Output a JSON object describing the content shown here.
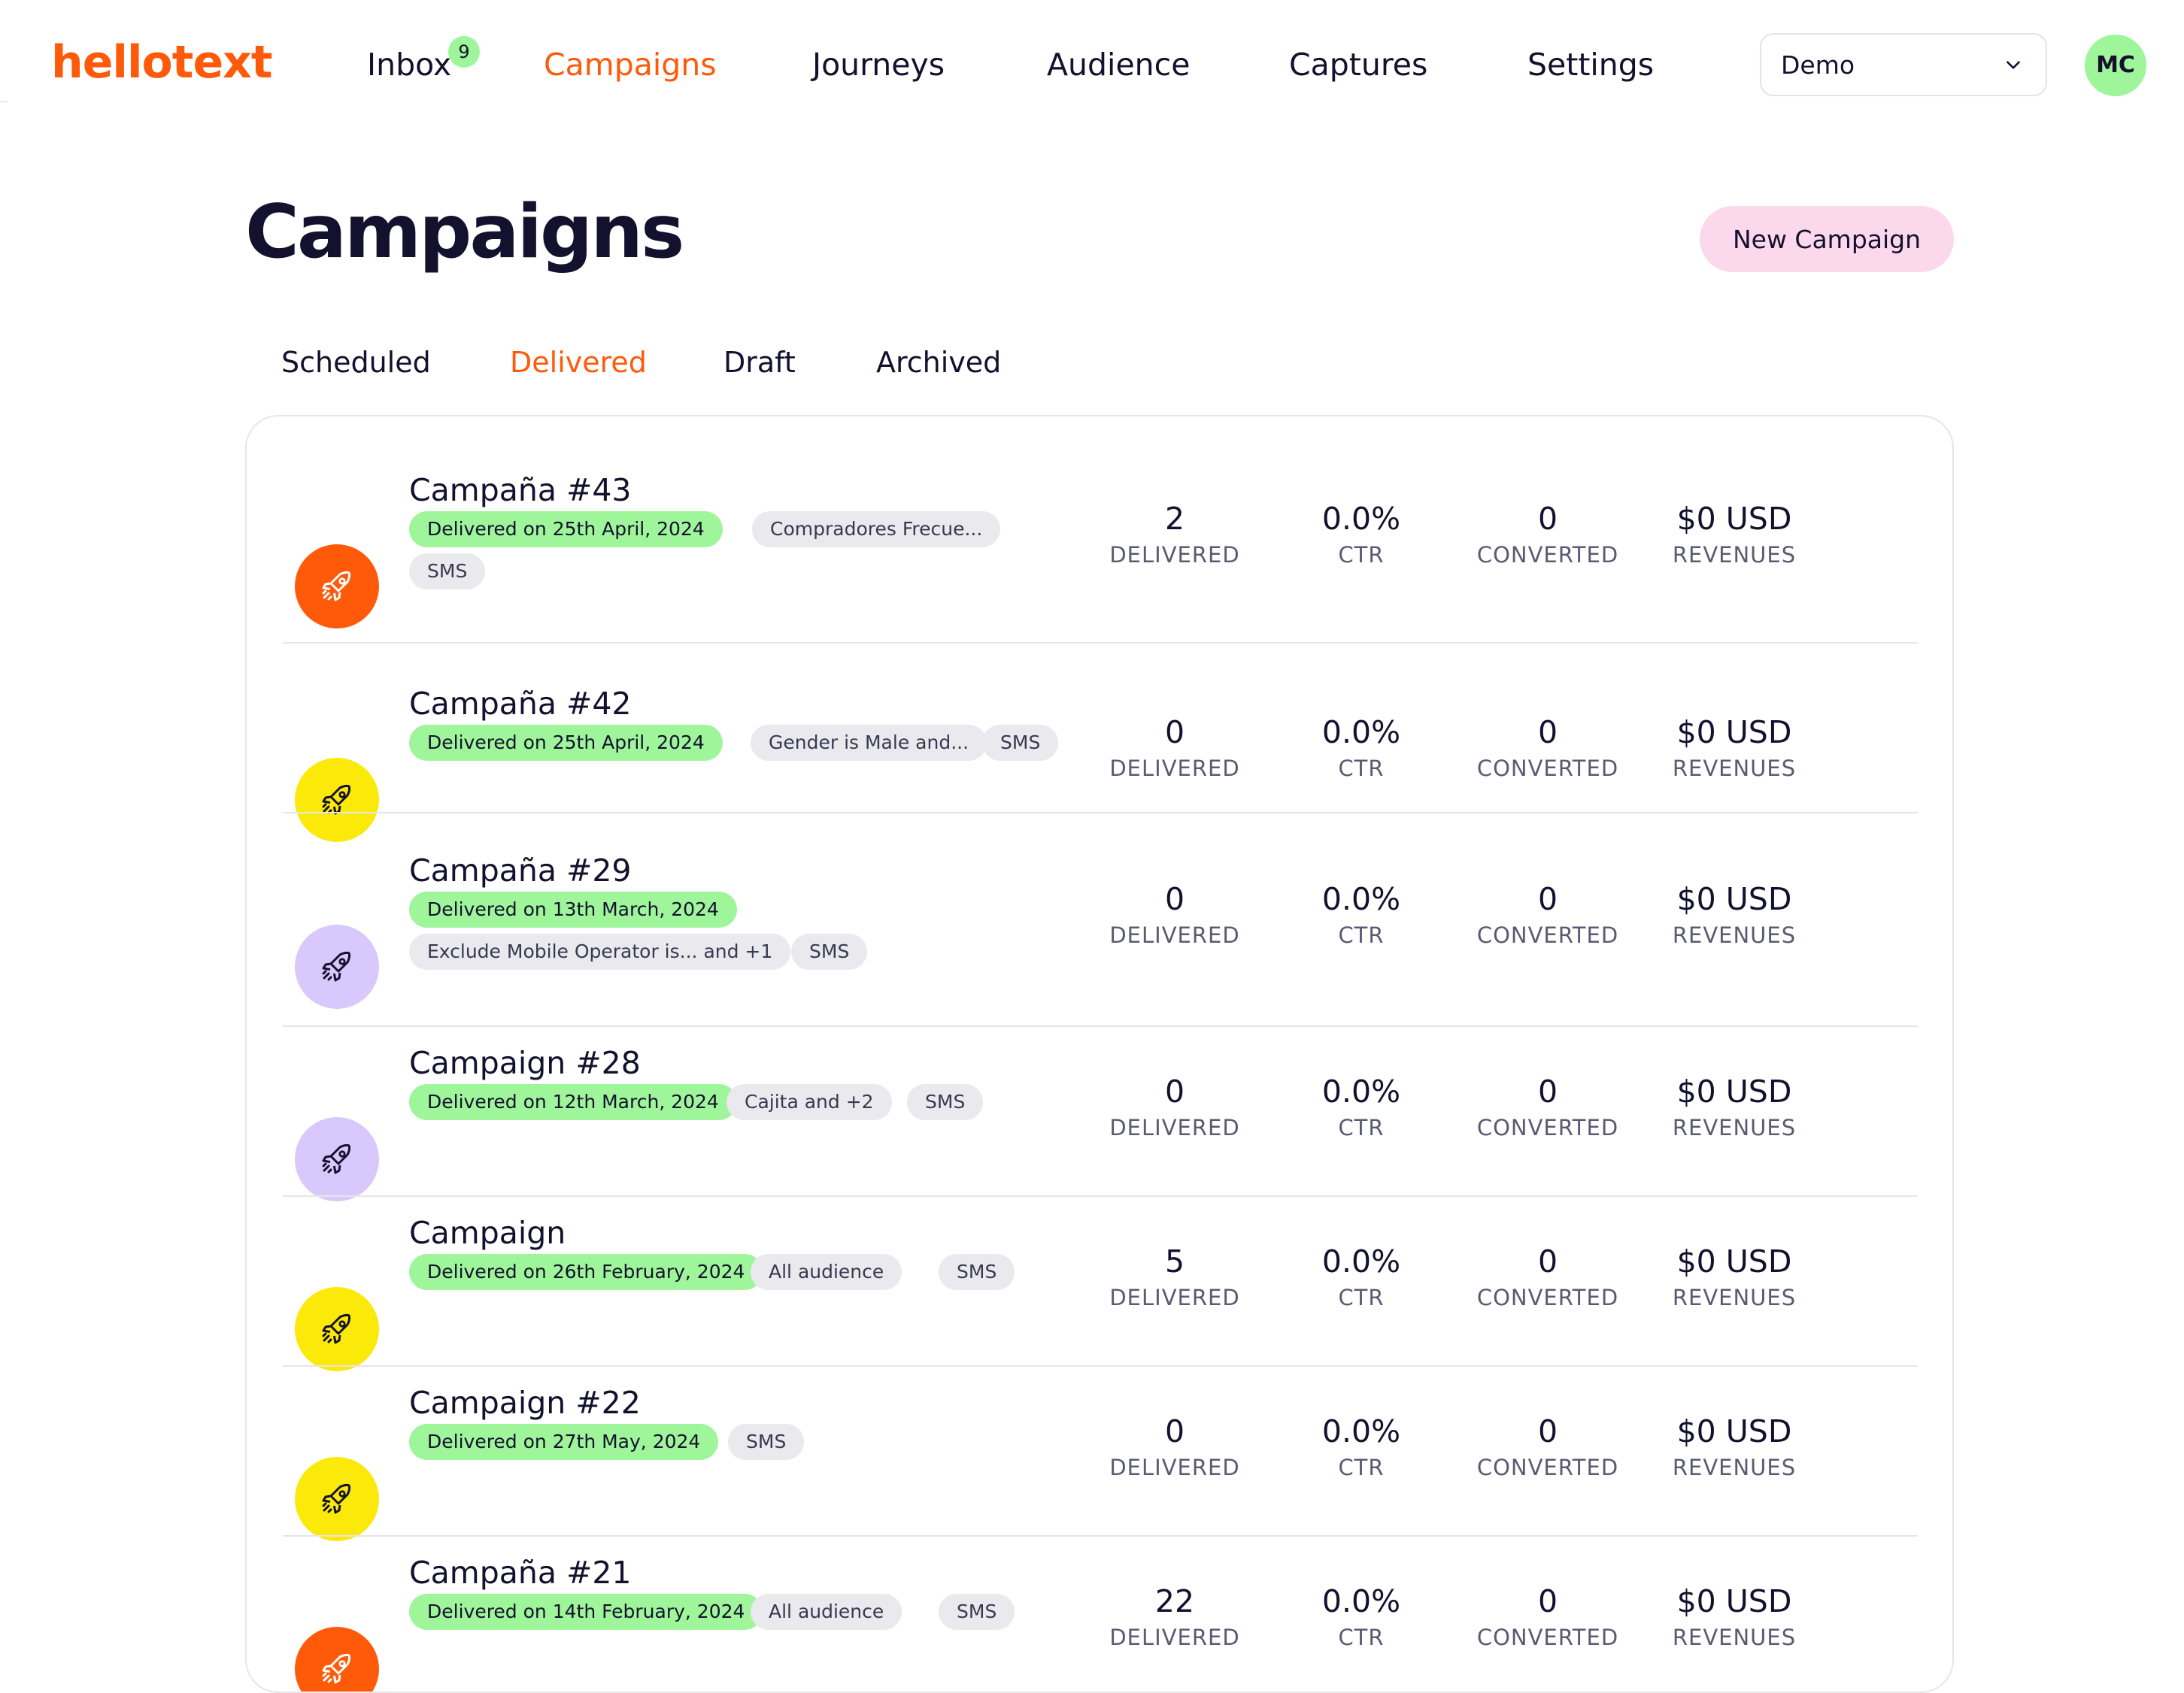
{
  "brand": {
    "logo_text": "hellotext",
    "accent": "#ff5a0a"
  },
  "nav": {
    "items": [
      {
        "label": "Inbox"
      },
      {
        "label": "Campaigns"
      },
      {
        "label": "Journeys"
      },
      {
        "label": "Audience"
      },
      {
        "label": "Captures"
      },
      {
        "label": "Settings"
      }
    ],
    "active": "Campaigns",
    "inbox_badge": "9",
    "workspace_select": "Demo",
    "avatar_initials": "MC"
  },
  "page": {
    "title": "Campaigns",
    "new_button": "New Campaign"
  },
  "tabs": [
    {
      "label": "Scheduled"
    },
    {
      "label": "Delivered"
    },
    {
      "label": "Draft"
    },
    {
      "label": "Archived"
    }
  ],
  "active_tab": "Delivered",
  "stat_labels": {
    "delivered": "DELIVERED",
    "ctr": "CTR",
    "converted": "CONVERTED",
    "revenues": "REVENUES"
  },
  "campaigns": [
    {
      "title": "Campaña #43",
      "status": "Delivered on 25th April, 2024",
      "audience": "Compradores Frecue...",
      "channel": "SMS",
      "icon_color": "#ff5a0a",
      "icon_fg": "#ffffff",
      "delivered": "2",
      "ctr": "0.0%",
      "converted": "0",
      "revenues": "$0 USD"
    },
    {
      "title": "Campaña #42",
      "status": "Delivered on 25th April, 2024",
      "audience": "Gender is Male and...",
      "channel": "SMS",
      "icon_color": "#fbe90a",
      "icon_fg": "#14112e",
      "delivered": "0",
      "ctr": "0.0%",
      "converted": "0",
      "revenues": "$0 USD"
    },
    {
      "title": "Campaña #29",
      "status": "Delivered on 13th March, 2024",
      "audience": "Exclude Mobile Operator is... and +1",
      "channel": "SMS",
      "icon_color": "#d9c8fb",
      "icon_fg": "#14112e",
      "delivered": "0",
      "ctr": "0.0%",
      "converted": "0",
      "revenues": "$0 USD"
    },
    {
      "title": "Campaign #28",
      "status": "Delivered on 12th March, 2024",
      "audience": "Cajita and +2",
      "channel": "SMS",
      "icon_color": "#d9c8fb",
      "icon_fg": "#14112e",
      "delivered": "0",
      "ctr": "0.0%",
      "converted": "0",
      "revenues": "$0 USD"
    },
    {
      "title": "Campaign",
      "status": "Delivered on 26th February, 2024",
      "audience": "All audience",
      "channel": "SMS",
      "icon_color": "#fbe90a",
      "icon_fg": "#14112e",
      "delivered": "5",
      "ctr": "0.0%",
      "converted": "0",
      "revenues": "$0 USD"
    },
    {
      "title": "Campaign #22",
      "status": "Delivered on 27th May, 2024",
      "audience": "",
      "channel": "SMS",
      "icon_color": "#fbe90a",
      "icon_fg": "#14112e",
      "delivered": "0",
      "ctr": "0.0%",
      "converted": "0",
      "revenues": "$0 USD"
    },
    {
      "title": "Campaña #21",
      "status": "Delivered on 14th February, 2024",
      "audience": "All audience",
      "channel": "SMS",
      "icon_color": "#ff5a0a",
      "icon_fg": "#ffffff",
      "delivered": "22",
      "ctr": "0.0%",
      "converted": "0",
      "revenues": "$0 USD"
    }
  ]
}
